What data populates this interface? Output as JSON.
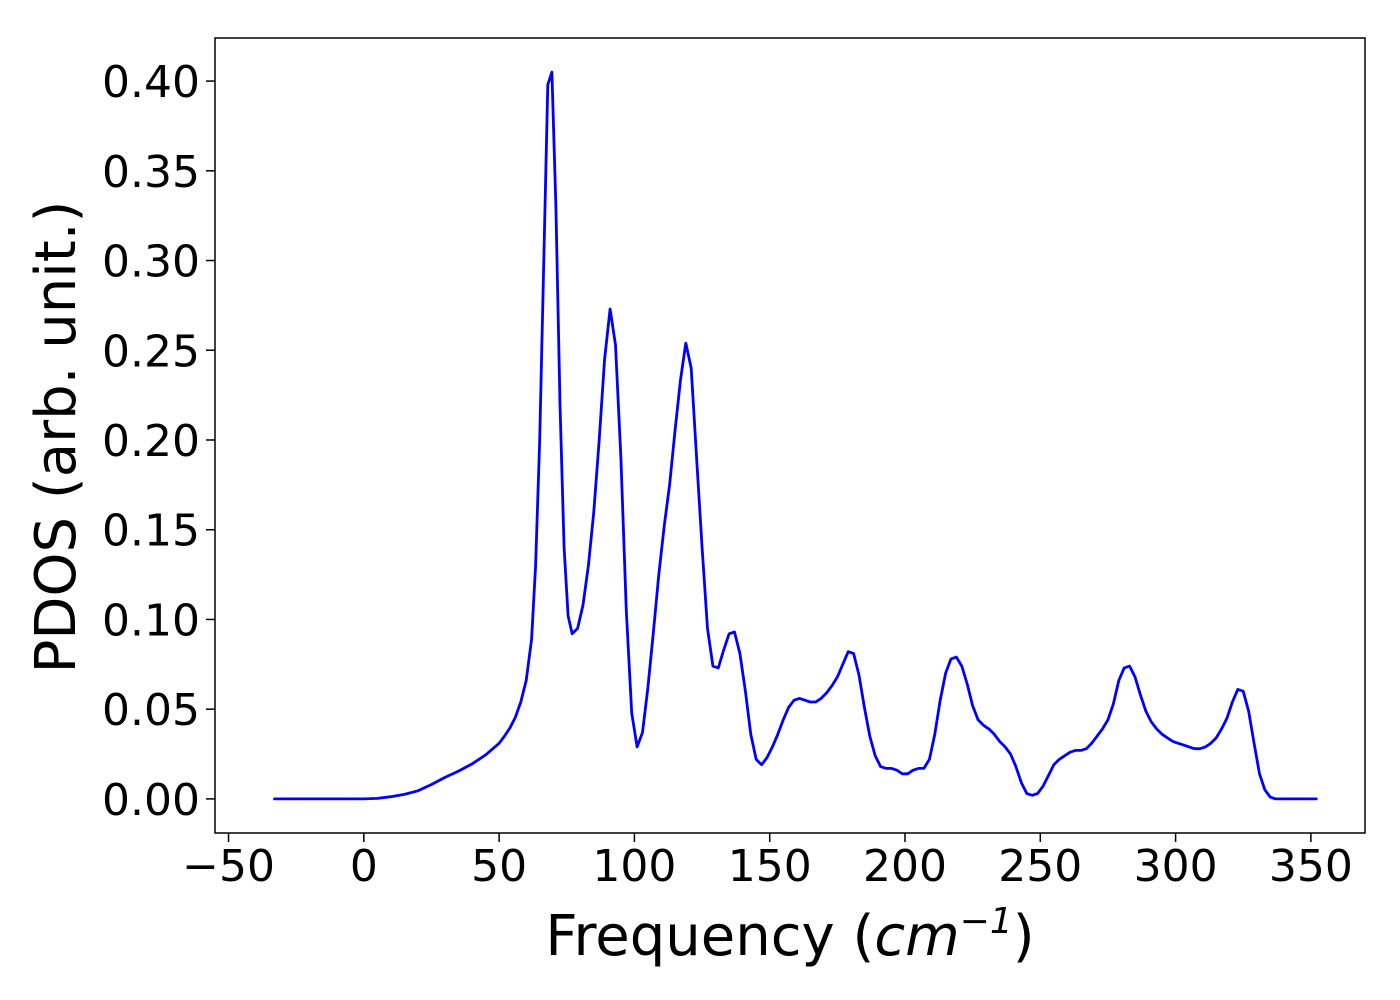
{
  "chart_data": {
    "type": "line",
    "title": "",
    "xlabel": "Frequency (cm⁻¹)",
    "xlabel_parts": {
      "prefix": "Frequency (",
      "unit_base": "cm",
      "unit_exponent": "−1",
      "suffix": ")"
    },
    "ylabel": "PDOS (arb. unit.)",
    "xlim": [
      -55,
      370
    ],
    "ylim": [
      -0.019,
      0.424
    ],
    "x_ticks": [
      {
        "value": -50,
        "label": "−50"
      },
      {
        "value": 0,
        "label": "0"
      },
      {
        "value": 50,
        "label": "50"
      },
      {
        "value": 100,
        "label": "100"
      },
      {
        "value": 150,
        "label": "150"
      },
      {
        "value": 200,
        "label": "200"
      },
      {
        "value": 250,
        "label": "250"
      },
      {
        "value": 300,
        "label": "300"
      },
      {
        "value": 350,
        "label": "350"
      }
    ],
    "y_ticks": [
      {
        "value": 0.0,
        "label": "0.00"
      },
      {
        "value": 0.05,
        "label": "0.05"
      },
      {
        "value": 0.1,
        "label": "0.10"
      },
      {
        "value": 0.15,
        "label": "0.15"
      },
      {
        "value": 0.2,
        "label": "0.20"
      },
      {
        "value": 0.25,
        "label": "0.25"
      },
      {
        "value": 0.3,
        "label": "0.30"
      },
      {
        "value": 0.35,
        "label": "0.35"
      },
      {
        "value": 0.4,
        "label": "0.40"
      }
    ],
    "grid": false,
    "legend": "none",
    "series": [
      {
        "color": "#0000ff",
        "points": [
          [
            -33,
            0.0
          ],
          [
            0,
            0.0
          ],
          [
            5,
            0.0003
          ],
          [
            10,
            0.0012
          ],
          [
            15,
            0.0025
          ],
          [
            20,
            0.0045
          ],
          [
            25,
            0.008
          ],
          [
            30,
            0.012
          ],
          [
            35,
            0.0155
          ],
          [
            40,
            0.0195
          ],
          [
            45,
            0.0245
          ],
          [
            50,
            0.031
          ],
          [
            52,
            0.035
          ],
          [
            54,
            0.0395
          ],
          [
            56,
            0.0455
          ],
          [
            58,
            0.054
          ],
          [
            60,
            0.066
          ],
          [
            62,
            0.089
          ],
          [
            63.5,
            0.13
          ],
          [
            65,
            0.2
          ],
          [
            66.5,
            0.3
          ],
          [
            68,
            0.398
          ],
          [
            69.5,
            0.405
          ],
          [
            71,
            0.33
          ],
          [
            72.5,
            0.22
          ],
          [
            74,
            0.14
          ],
          [
            75.5,
            0.102
          ],
          [
            77,
            0.092
          ],
          [
            79,
            0.095
          ],
          [
            81,
            0.108
          ],
          [
            83,
            0.13
          ],
          [
            85,
            0.16
          ],
          [
            87,
            0.2
          ],
          [
            89,
            0.245
          ],
          [
            91,
            0.273
          ],
          [
            93,
            0.253
          ],
          [
            95,
            0.19
          ],
          [
            97,
            0.105
          ],
          [
            99,
            0.048
          ],
          [
            101,
            0.029
          ],
          [
            103,
            0.037
          ],
          [
            105,
            0.062
          ],
          [
            107,
            0.093
          ],
          [
            109,
            0.125
          ],
          [
            111,
            0.152
          ],
          [
            113,
            0.175
          ],
          [
            115,
            0.205
          ],
          [
            117,
            0.233
          ],
          [
            119,
            0.254
          ],
          [
            121,
            0.24
          ],
          [
            123,
            0.19
          ],
          [
            125,
            0.14
          ],
          [
            127,
            0.095
          ],
          [
            129,
            0.074
          ],
          [
            131,
            0.073
          ],
          [
            133,
            0.083
          ],
          [
            135,
            0.092
          ],
          [
            137,
            0.093
          ],
          [
            139,
            0.081
          ],
          [
            141,
            0.06
          ],
          [
            143,
            0.036
          ],
          [
            145,
            0.022
          ],
          [
            147,
            0.019
          ],
          [
            149,
            0.023
          ],
          [
            151,
            0.029
          ],
          [
            153,
            0.036
          ],
          [
            155,
            0.044
          ],
          [
            157,
            0.051
          ],
          [
            159,
            0.055
          ],
          [
            161,
            0.056
          ],
          [
            163,
            0.055
          ],
          [
            165,
            0.054
          ],
          [
            167,
            0.054
          ],
          [
            169,
            0.056
          ],
          [
            171,
            0.059
          ],
          [
            173,
            0.063
          ],
          [
            175,
            0.068
          ],
          [
            177,
            0.075
          ],
          [
            179,
            0.082
          ],
          [
            181,
            0.081
          ],
          [
            183,
            0.069
          ],
          [
            185,
            0.051
          ],
          [
            187,
            0.035
          ],
          [
            189,
            0.024
          ],
          [
            191,
            0.018
          ],
          [
            193,
            0.017
          ],
          [
            195,
            0.017
          ],
          [
            197,
            0.016
          ],
          [
            199,
            0.014
          ],
          [
            201,
            0.014
          ],
          [
            203,
            0.016
          ],
          [
            205,
            0.017
          ],
          [
            207,
            0.017
          ],
          [
            209,
            0.022
          ],
          [
            211,
            0.036
          ],
          [
            213,
            0.055
          ],
          [
            215,
            0.07
          ],
          [
            217,
            0.078
          ],
          [
            219,
            0.079
          ],
          [
            221,
            0.074
          ],
          [
            223,
            0.064
          ],
          [
            225,
            0.052
          ],
          [
            227,
            0.044
          ],
          [
            229,
            0.041
          ],
          [
            231,
            0.039
          ],
          [
            233,
            0.036
          ],
          [
            235,
            0.032
          ],
          [
            237,
            0.029
          ],
          [
            239,
            0.025
          ],
          [
            241,
            0.018
          ],
          [
            243,
            0.009
          ],
          [
            245,
            0.003
          ],
          [
            247,
            0.002
          ],
          [
            249,
            0.003
          ],
          [
            251,
            0.007
          ],
          [
            253,
            0.013
          ],
          [
            255,
            0.019
          ],
          [
            257,
            0.022
          ],
          [
            259,
            0.024
          ],
          [
            261,
            0.026
          ],
          [
            263,
            0.027
          ],
          [
            265,
            0.027
          ],
          [
            267,
            0.028
          ],
          [
            269,
            0.031
          ],
          [
            271,
            0.035
          ],
          [
            273,
            0.039
          ],
          [
            275,
            0.044
          ],
          [
            277,
            0.053
          ],
          [
            279,
            0.066
          ],
          [
            281,
            0.073
          ],
          [
            283,
            0.074
          ],
          [
            285,
            0.068
          ],
          [
            287,
            0.058
          ],
          [
            289,
            0.049
          ],
          [
            291,
            0.043
          ],
          [
            293,
            0.039
          ],
          [
            295,
            0.036
          ],
          [
            297,
            0.034
          ],
          [
            299,
            0.032
          ],
          [
            301,
            0.031
          ],
          [
            303,
            0.03
          ],
          [
            305,
            0.029
          ],
          [
            307,
            0.028
          ],
          [
            309,
            0.028
          ],
          [
            311,
            0.029
          ],
          [
            313,
            0.031
          ],
          [
            315,
            0.034
          ],
          [
            317,
            0.039
          ],
          [
            319,
            0.045
          ],
          [
            321,
            0.054
          ],
          [
            323,
            0.061
          ],
          [
            325,
            0.06
          ],
          [
            327,
            0.049
          ],
          [
            329,
            0.031
          ],
          [
            331,
            0.014
          ],
          [
            333,
            0.005
          ],
          [
            335,
            0.001
          ],
          [
            337,
            0.0
          ],
          [
            352,
            0.0
          ]
        ]
      }
    ]
  }
}
